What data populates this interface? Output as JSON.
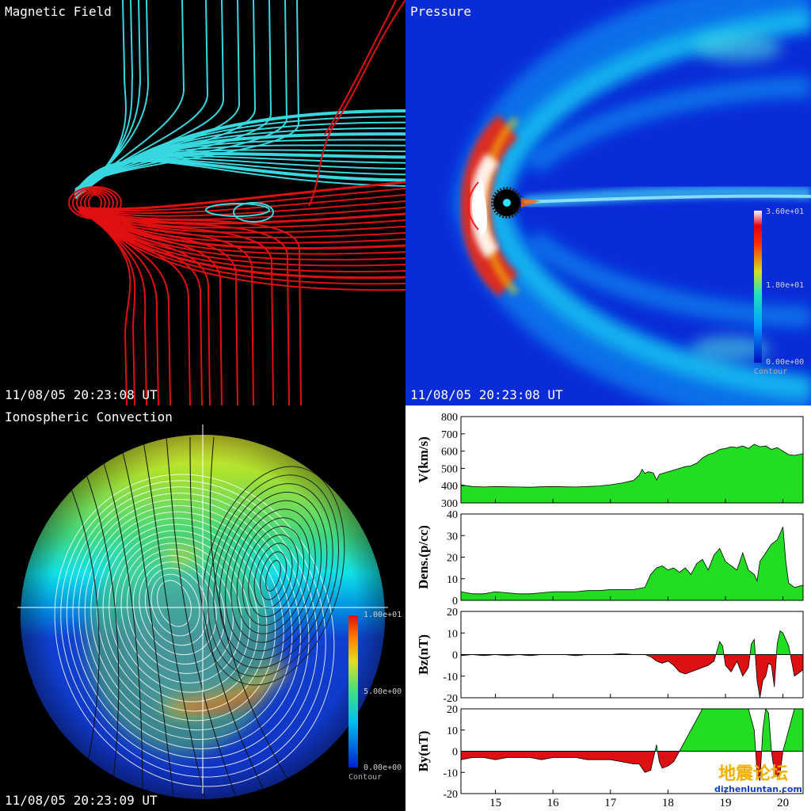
{
  "panels": {
    "magnetic": {
      "title": "Magnetic Field",
      "timestamp": "11/08/05 20:23:08 UT"
    },
    "pressure": {
      "title": "Pressure",
      "timestamp": "11/08/05 20:23:08 UT",
      "colorbar": {
        "max_label": "3.60e+01",
        "mid_label": "1.80e+01",
        "min_label": "0.00e+00",
        "caption": "Contour"
      }
    },
    "ionosphere": {
      "title": "Ionospheric Convection",
      "timestamp": "11/08/05 20:23:09 UT",
      "colorbar": {
        "max_label": "1.00e+01",
        "mid_label": "5.00e+00",
        "min_label": "0.00e+00",
        "caption": "Contour"
      }
    }
  },
  "colors": {
    "field_open": "#37d8e0",
    "field_closed": "#e01010",
    "fill_positive": "#22dd22",
    "fill_negative": "#dd1111"
  },
  "watermark": {
    "chinese": "地震论坛",
    "url": "dizhenluntan.com"
  },
  "chart_data": {
    "type": "area",
    "x_ticks": [
      15,
      16,
      17,
      18,
      19,
      20
    ],
    "xlim": [
      14.4,
      20.35
    ],
    "subplots": [
      {
        "ylabel": "V(km/s)",
        "ylim": [
          300,
          800
        ],
        "yticks": [
          300,
          400,
          500,
          600,
          700,
          800
        ],
        "baseline": 300,
        "x": [
          14.4,
          14.6,
          14.8,
          15.0,
          15.2,
          15.4,
          15.6,
          15.8,
          16.0,
          16.2,
          16.4,
          16.6,
          16.8,
          17.0,
          17.2,
          17.4,
          17.5,
          17.55,
          17.6,
          17.65,
          17.7,
          17.75,
          17.8,
          17.85,
          17.9,
          18.0,
          18.1,
          18.2,
          18.3,
          18.4,
          18.5,
          18.6,
          18.7,
          18.8,
          18.9,
          19.0,
          19.1,
          19.2,
          19.3,
          19.4,
          19.5,
          19.6,
          19.7,
          19.8,
          19.9,
          20.0,
          20.1,
          20.2,
          20.35
        ],
        "values": [
          405,
          395,
          392,
          395,
          393,
          392,
          391,
          393,
          395,
          393,
          392,
          395,
          398,
          405,
          415,
          430,
          460,
          495,
          470,
          480,
          478,
          472,
          432,
          465,
          470,
          480,
          490,
          500,
          510,
          515,
          530,
          560,
          580,
          590,
          610,
          615,
          625,
          620,
          630,
          615,
          640,
          625,
          630,
          610,
          620,
          600,
          580,
          575,
          585
        ]
      },
      {
        "ylabel": "Dens.(p/cc)",
        "ylim": [
          0,
          40
        ],
        "yticks": [
          0,
          10,
          20,
          30,
          40
        ],
        "baseline": 0,
        "x": [
          14.4,
          14.6,
          14.8,
          15.0,
          15.2,
          15.4,
          15.6,
          15.8,
          16.0,
          16.2,
          16.4,
          16.6,
          16.8,
          17.0,
          17.2,
          17.4,
          17.5,
          17.6,
          17.7,
          17.8,
          17.9,
          18.0,
          18.1,
          18.2,
          18.3,
          18.4,
          18.5,
          18.6,
          18.7,
          18.8,
          18.9,
          19.0,
          19.1,
          19.2,
          19.3,
          19.4,
          19.5,
          19.55,
          19.6,
          19.7,
          19.8,
          19.9,
          19.95,
          20.0,
          20.05,
          20.1,
          20.2,
          20.35
        ],
        "values": [
          4,
          3,
          3,
          4,
          3.5,
          3,
          3,
          3.5,
          4,
          4,
          4,
          4.5,
          4.5,
          5,
          5,
          5,
          5.5,
          6,
          12,
          15,
          16,
          14,
          15,
          13,
          15,
          12,
          17,
          19,
          14,
          21,
          24,
          18,
          16,
          14,
          22,
          14,
          12,
          9,
          18,
          22,
          26,
          28,
          31,
          34,
          18,
          8,
          6,
          7
        ]
      },
      {
        "ylabel": "Bz(nT)",
        "ylim": [
          -20,
          20
        ],
        "yticks": [
          -20,
          -10,
          0,
          10,
          20
        ],
        "baseline": 0,
        "x": [
          14.4,
          14.6,
          14.8,
          15.0,
          15.2,
          15.4,
          15.6,
          15.8,
          16.0,
          16.2,
          16.4,
          16.6,
          16.8,
          17.0,
          17.2,
          17.4,
          17.5,
          17.6,
          17.7,
          17.8,
          17.9,
          18.0,
          18.1,
          18.2,
          18.3,
          18.4,
          18.5,
          18.6,
          18.7,
          18.8,
          18.9,
          18.95,
          19.0,
          19.1,
          19.2,
          19.3,
          19.4,
          19.45,
          19.5,
          19.55,
          19.6,
          19.65,
          19.7,
          19.75,
          19.8,
          19.85,
          19.9,
          19.95,
          20.0,
          20.1,
          20.2,
          20.35
        ],
        "values": [
          -0.5,
          0,
          -0.5,
          0,
          -0.5,
          0,
          -0.5,
          0,
          0,
          0,
          -0.5,
          0,
          0,
          0,
          0.5,
          0,
          0,
          0,
          -1,
          -3,
          -4,
          -3,
          -5,
          -8,
          -9,
          -8,
          -7,
          -6,
          -5,
          -3,
          6,
          4,
          -5,
          -8,
          -3,
          -10,
          -6,
          5,
          7,
          -12,
          -20,
          -12,
          -10,
          -4,
          -5,
          -15,
          5,
          11,
          10,
          4,
          -10,
          -7
        ]
      },
      {
        "ylabel": "By(nT)",
        "ylim": [
          -20,
          20
        ],
        "yticks": [
          -20,
          -10,
          0,
          10,
          20
        ],
        "baseline": 0,
        "x": [
          14.4,
          14.6,
          14.8,
          15.0,
          15.2,
          15.4,
          15.6,
          15.8,
          16.0,
          16.2,
          16.4,
          16.6,
          16.8,
          17.0,
          17.2,
          17.4,
          17.5,
          17.6,
          17.7,
          17.75,
          17.8,
          17.85,
          17.9,
          18.0,
          18.1,
          18.2,
          18.3,
          18.4,
          18.5,
          18.6,
          18.7,
          18.8,
          18.9,
          19.0,
          19.1,
          19.2,
          19.3,
          19.4,
          19.5,
          19.55,
          19.6,
          19.65,
          19.7,
          19.75,
          19.8,
          19.85,
          19.9,
          19.95,
          20.0,
          20.1,
          20.2,
          20.35
        ],
        "values": [
          -4,
          -3,
          -3,
          -4,
          -3,
          -3,
          -3,
          -4,
          -3,
          -3,
          -3,
          -4,
          -4,
          -4,
          -5,
          -6,
          -6,
          -10,
          -9,
          -3,
          3,
          -5,
          -8,
          -7,
          -5,
          0,
          5,
          10,
          15,
          20,
          25,
          25,
          25,
          25,
          25,
          25,
          25,
          25,
          10,
          -10,
          -14,
          10,
          20,
          18,
          0,
          -10,
          -12,
          -10,
          0,
          10,
          25,
          25
        ]
      }
    ]
  }
}
